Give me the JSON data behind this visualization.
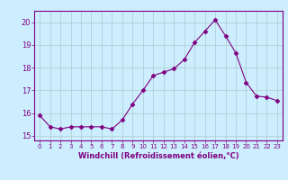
{
  "x": [
    0,
    1,
    2,
    3,
    4,
    5,
    6,
    7,
    8,
    9,
    10,
    11,
    12,
    13,
    14,
    15,
    16,
    17,
    18,
    19,
    20,
    21,
    22,
    23
  ],
  "y": [
    15.9,
    15.4,
    15.3,
    15.4,
    15.4,
    15.4,
    15.4,
    15.3,
    15.7,
    16.4,
    17.0,
    17.65,
    17.8,
    17.95,
    18.35,
    19.1,
    19.6,
    20.1,
    19.4,
    18.65,
    17.35,
    16.75,
    16.7,
    16.55
  ],
  "line_color": "#800080",
  "marker": "D",
  "marker_size": 2.5,
  "bg_color": "#cceeff",
  "grid_color": "#aacccc",
  "xlabel": "Windchill (Refroidissement éolien,°C)",
  "xlabel_color": "#800080",
  "tick_color": "#800080",
  "ylim": [
    14.8,
    20.5
  ],
  "yticks": [
    15,
    16,
    17,
    18,
    19,
    20
  ],
  "xlim": [
    -0.5,
    23.5
  ],
  "xticks": [
    0,
    1,
    2,
    3,
    4,
    5,
    6,
    7,
    8,
    9,
    10,
    11,
    12,
    13,
    14,
    15,
    16,
    17,
    18,
    19,
    20,
    21,
    22,
    23
  ],
  "spine_color": "#800080"
}
